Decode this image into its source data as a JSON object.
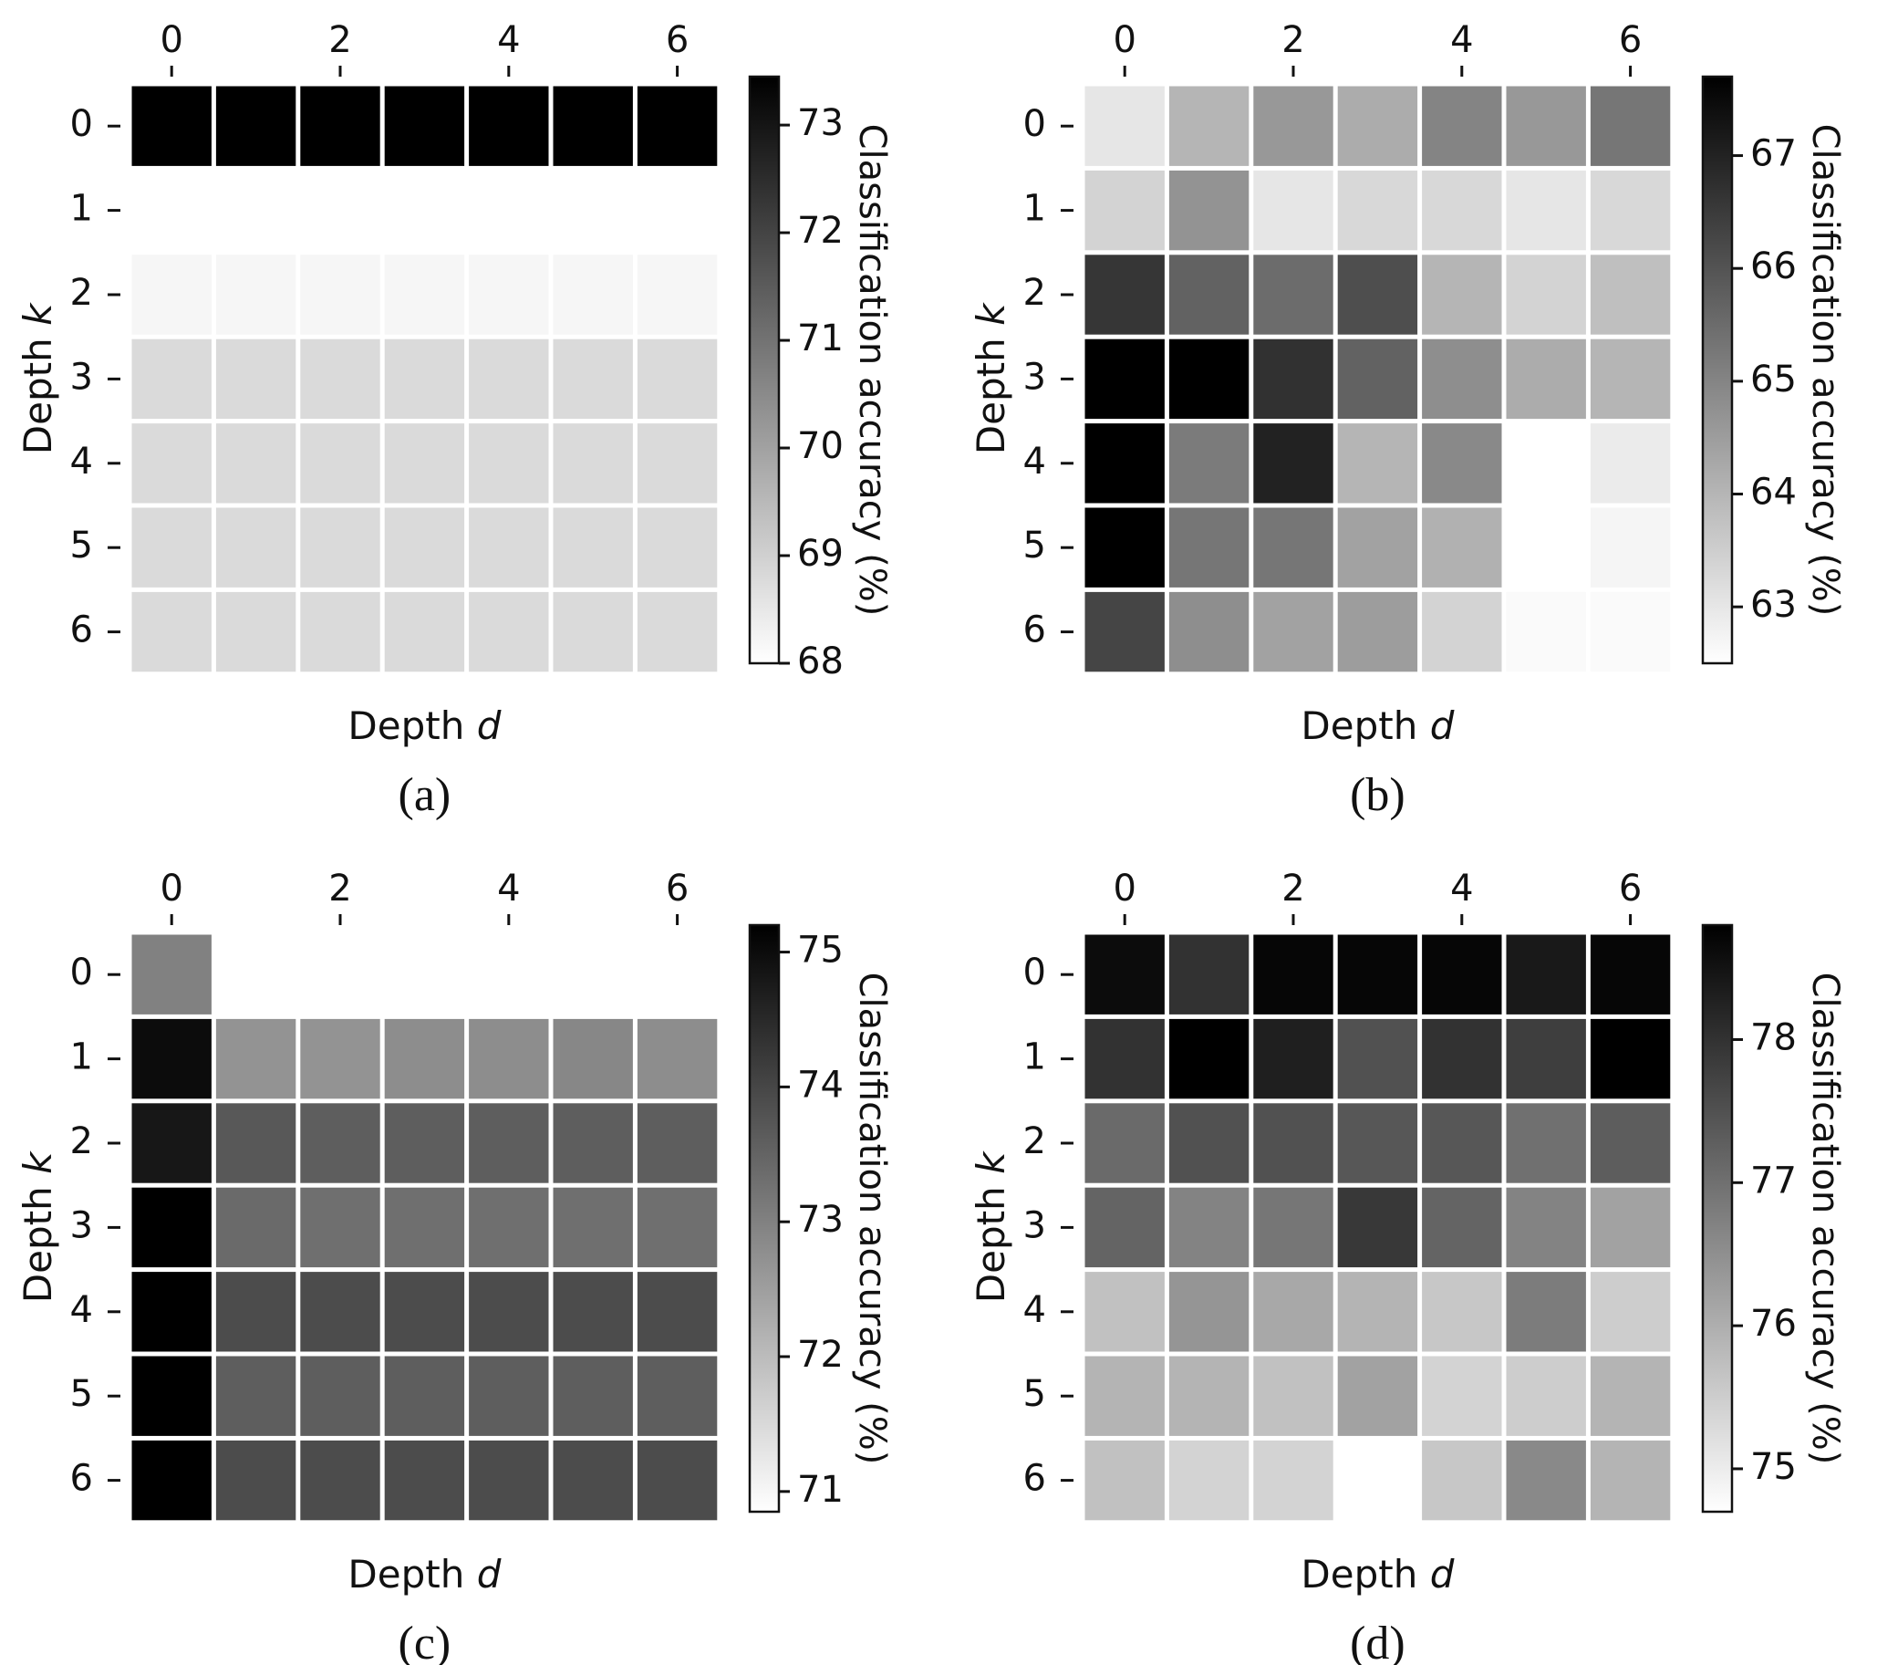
{
  "chart_data": [
    {
      "type": "heatmap",
      "caption": "(a)",
      "xlabel": "Depth",
      "xlabel_var": "d",
      "ylabel": "Depth",
      "ylabel_var": "k",
      "x_ticks": [
        "0",
        "2",
        "4",
        "6"
      ],
      "y_ticks": [
        "0",
        "1",
        "2",
        "3",
        "4",
        "5",
        "6"
      ],
      "colorbar_label": "Classification accuracy (%)",
      "colorbar_ticks": [
        "68",
        "69",
        "70",
        "71",
        "72",
        "73"
      ],
      "colorbar_range": [
        68.0,
        73.45
      ],
      "colormap": "gray_r",
      "values": [
        [
          73.5,
          73.5,
          73.5,
          73.5,
          73.5,
          73.5,
          73.5
        ],
        [
          null,
          null,
          null,
          null,
          null,
          null,
          null
        ],
        [
          68.2,
          68.2,
          68.2,
          68.2,
          68.2,
          68.2,
          68.2
        ],
        [
          68.8,
          68.8,
          68.8,
          68.8,
          68.8,
          68.8,
          68.8
        ],
        [
          68.8,
          68.8,
          68.8,
          68.8,
          68.8,
          68.8,
          68.8
        ],
        [
          68.8,
          68.8,
          68.8,
          68.8,
          68.8,
          68.8,
          68.8
        ],
        [
          68.8,
          68.8,
          68.8,
          68.8,
          68.8,
          68.8,
          68.8
        ]
      ]
    },
    {
      "type": "heatmap",
      "caption": "(b)",
      "xlabel": "Depth",
      "xlabel_var": "d",
      "ylabel": "Depth",
      "ylabel_var": "k",
      "x_ticks": [
        "0",
        "2",
        "4",
        "6"
      ],
      "y_ticks": [
        "0",
        "1",
        "2",
        "3",
        "4",
        "5",
        "6"
      ],
      "colorbar_label": "Classification accuracy (%)",
      "colorbar_ticks": [
        "63",
        "64",
        "65",
        "66",
        "67"
      ],
      "colorbar_range": [
        62.5,
        67.7
      ],
      "colormap": "gray_r",
      "values": [
        [
          63.0,
          64.0,
          64.6,
          64.2,
          65.0,
          64.6,
          65.3
        ],
        [
          63.4,
          64.7,
          63.0,
          63.3,
          63.3,
          63.0,
          63.3
        ],
        [
          66.6,
          65.7,
          65.5,
          66.1,
          64.0,
          63.4,
          63.8
        ],
        [
          67.7,
          67.8,
          66.7,
          65.7,
          64.8,
          64.2,
          64.0
        ],
        [
          67.7,
          65.2,
          67.0,
          64.0,
          64.9,
          null,
          62.9
        ],
        [
          67.7,
          65.3,
          65.3,
          64.4,
          64.1,
          null,
          62.7
        ],
        [
          66.3,
          64.8,
          64.4,
          64.5,
          63.4,
          62.6,
          62.6
        ]
      ]
    },
    {
      "type": "heatmap",
      "caption": "(c)",
      "xlabel": "Depth",
      "xlabel_var": "d",
      "ylabel": "Depth",
      "ylabel_var": "k",
      "x_ticks": [
        "0",
        "2",
        "4",
        "6"
      ],
      "y_ticks": [
        "0",
        "1",
        "2",
        "3",
        "4",
        "5",
        "6"
      ],
      "colorbar_label": "Classification accuracy (%)",
      "colorbar_ticks": [
        "71",
        "72",
        "73",
        "74",
        "75"
      ],
      "colorbar_range": [
        70.85,
        75.2
      ],
      "colormap": "gray_r",
      "values": [
        [
          73.0,
          null,
          null,
          null,
          null,
          null,
          null
        ],
        [
          75.0,
          72.7,
          72.7,
          72.8,
          72.8,
          72.9,
          72.8
        ],
        [
          74.8,
          73.7,
          73.6,
          73.6,
          73.6,
          73.6,
          73.6
        ],
        [
          75.2,
          73.4,
          73.3,
          73.3,
          73.3,
          73.3,
          73.3
        ],
        [
          75.2,
          73.9,
          73.9,
          73.9,
          73.9,
          73.9,
          73.9
        ],
        [
          75.2,
          73.6,
          73.6,
          73.6,
          73.6,
          73.6,
          73.6
        ],
        [
          75.2,
          73.9,
          73.9,
          73.9,
          73.9,
          73.9,
          73.9
        ]
      ]
    },
    {
      "type": "heatmap",
      "caption": "(d)",
      "xlabel": "Depth",
      "xlabel_var": "d",
      "ylabel": "Depth",
      "ylabel_var": "k",
      "x_ticks": [
        "0",
        "2",
        "4",
        "6"
      ],
      "y_ticks": [
        "0",
        "1",
        "2",
        "3",
        "4",
        "5",
        "6"
      ],
      "colorbar_label": "Classification accuracy (%)",
      "colorbar_ticks": [
        "75",
        "76",
        "77",
        "78"
      ],
      "colorbar_range": [
        74.7,
        78.8
      ],
      "colormap": "gray_r",
      "values": [
        [
          78.6,
          78.0,
          78.7,
          78.7,
          78.7,
          78.4,
          78.7
        ],
        [
          78.0,
          78.8,
          78.3,
          77.5,
          78.0,
          77.8,
          78.8
        ],
        [
          77.1,
          77.5,
          77.5,
          77.4,
          77.4,
          77.0,
          77.3
        ],
        [
          77.2,
          76.7,
          76.9,
          77.9,
          77.2,
          76.7,
          76.2
        ],
        [
          75.7,
          76.4,
          76.1,
          75.9,
          75.6,
          76.8,
          75.5
        ],
        [
          75.9,
          75.9,
          75.7,
          76.2,
          75.4,
          75.5,
          75.9
        ],
        [
          75.7,
          75.4,
          75.4,
          null,
          75.6,
          76.6,
          75.9
        ]
      ]
    }
  ]
}
